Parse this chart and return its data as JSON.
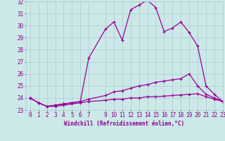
{
  "hours": [
    0,
    1,
    2,
    3,
    4,
    5,
    6,
    7,
    9,
    10,
    11,
    12,
    13,
    14,
    15,
    16,
    17,
    18,
    19,
    20,
    21,
    22,
    23
  ],
  "line1": [
    24.0,
    23.6,
    23.3,
    23.3,
    23.4,
    23.5,
    23.6,
    23.7,
    23.8,
    23.9,
    23.9,
    24.0,
    24.0,
    24.1,
    24.1,
    24.15,
    24.2,
    24.25,
    24.3,
    24.35,
    24.1,
    23.9,
    23.7
  ],
  "line2": [
    24.0,
    23.6,
    23.3,
    23.4,
    23.5,
    23.6,
    23.7,
    23.9,
    24.2,
    24.5,
    24.6,
    24.8,
    25.0,
    25.1,
    25.3,
    25.4,
    25.5,
    25.6,
    26.0,
    25.0,
    24.3,
    24.0,
    23.7
  ],
  "line3": [
    24.0,
    23.6,
    23.3,
    23.4,
    23.5,
    23.6,
    23.7,
    27.3,
    29.7,
    30.3,
    28.8,
    31.3,
    31.7,
    32.1,
    31.5,
    29.5,
    29.8,
    30.3,
    29.4,
    28.3,
    25.0,
    24.3,
    23.7
  ],
  "line_color": "#990099",
  "bg_color": "#cce8e8",
  "grid_color": "#aacccc",
  "xlabel": "Windchill (Refroidissement éolien,°C)",
  "ylim_min": 23,
  "ylim_max": 32,
  "xlim_min": -0.5,
  "xlim_max": 23,
  "xtick_positions": [
    0,
    1,
    2,
    3,
    4,
    5,
    6,
    7,
    9,
    10,
    11,
    12,
    13,
    14,
    15,
    16,
    17,
    18,
    19,
    20,
    21,
    22,
    23
  ],
  "xtick_labels": [
    "0",
    "1",
    "2",
    "3",
    "4",
    "5",
    "6",
    "7",
    "9",
    "10",
    "11",
    "12",
    "13",
    "14",
    "15",
    "16",
    "17",
    "18",
    "19",
    "20",
    "21",
    "22",
    "23"
  ],
  "ytick_positions": [
    23,
    24,
    25,
    26,
    27,
    28,
    29,
    30,
    31,
    32
  ],
  "ytick_labels": [
    "23",
    "24",
    "25",
    "26",
    "27",
    "28",
    "29",
    "30",
    "31",
    "32"
  ],
  "text_color": "#880088",
  "font_size_ticks": 5.5,
  "font_size_xlabel": 5.5
}
